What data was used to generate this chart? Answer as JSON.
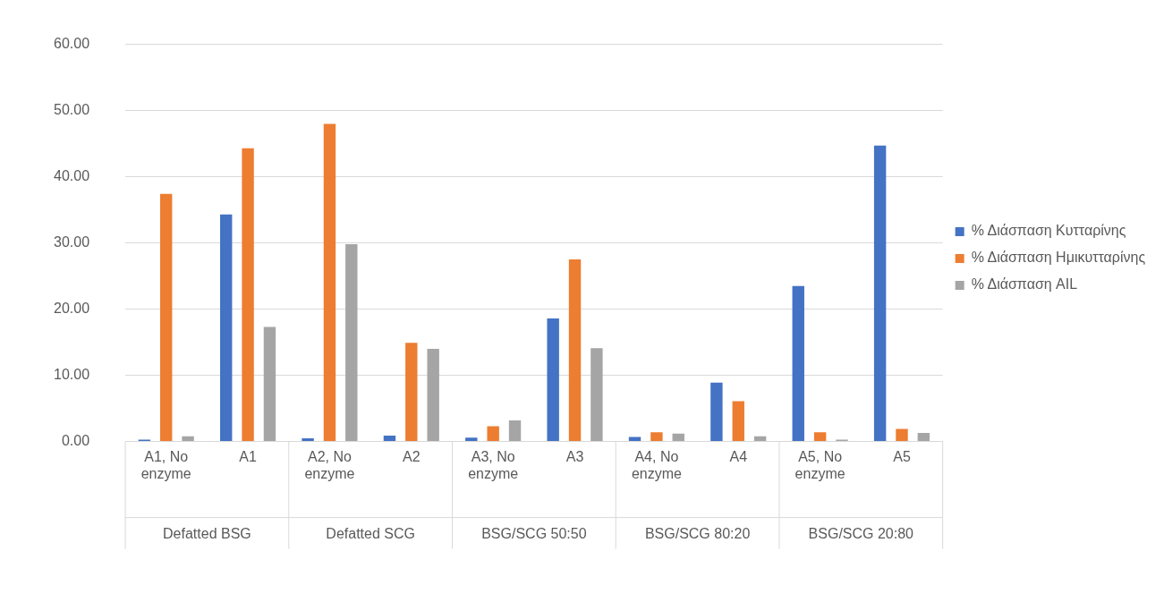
{
  "chart_data": {
    "type": "bar",
    "categories": [
      "A1, No enzyme",
      "A1",
      "A2, No enzyme",
      "A2",
      "A3, No enzyme",
      "A3",
      "A4, No enzyme",
      "A4",
      "A5, No enzyme",
      "A5"
    ],
    "series": [
      {
        "name": "% Διάσπαση Κυτταρίνης",
        "color": "#4472c4",
        "values": [
          0.3,
          34.3,
          0.5,
          0.9,
          0.6,
          18.6,
          0.7,
          8.9,
          23.5,
          44.7
        ]
      },
      {
        "name": "% Διάσπαση Ημικυτταρίνης",
        "color": "#ed7d31",
        "values": [
          37.4,
          44.3,
          48.0,
          14.9,
          2.3,
          27.5,
          1.4,
          6.1,
          1.4,
          1.9
        ]
      },
      {
        "name": "% Διάσπαση AIL",
        "color": "#a5a5a5",
        "values": [
          0.8,
          17.3,
          29.8,
          14.0,
          3.2,
          14.1,
          1.2,
          0.8,
          0.3,
          1.3
        ]
      }
    ],
    "ylim": [
      0,
      60
    ],
    "yticks": [
      {
        "value": 0,
        "label": "0.00"
      },
      {
        "value": 10,
        "label": "10.00"
      },
      {
        "value": 20,
        "label": "20.00"
      },
      {
        "value": 30,
        "label": "30.00"
      },
      {
        "value": 40,
        "label": "40.00"
      },
      {
        "value": 50,
        "label": "50.00"
      },
      {
        "value": 60,
        "label": "60.00"
      }
    ],
    "grid": "y",
    "legend": "right",
    "annotations": [
      "Defatted BSG",
      "Defatted SCG",
      "BSG/SCG 50:50",
      "BSG/SCG 80:20",
      "BSG/SCG 20:80"
    ]
  }
}
